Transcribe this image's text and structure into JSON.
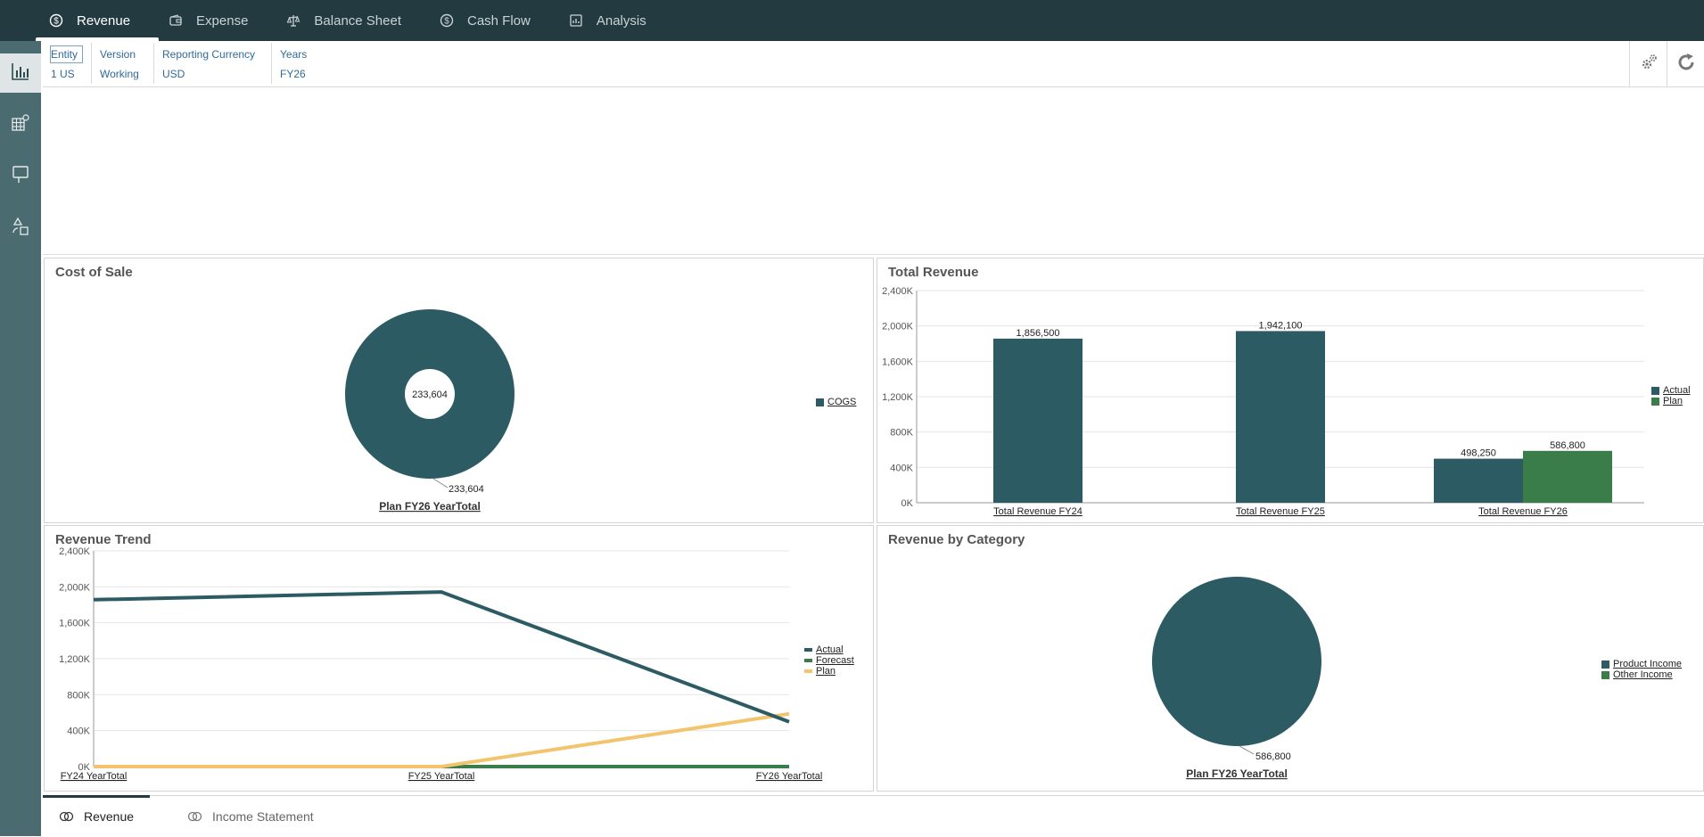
{
  "topnav": {
    "tabs": [
      {
        "label": "Revenue",
        "icon": "dollar-circle-icon",
        "active": true
      },
      {
        "label": "Expense",
        "icon": "wallet-icon",
        "active": false
      },
      {
        "label": "Balance Sheet",
        "icon": "scale-icon",
        "active": false
      },
      {
        "label": "Cash Flow",
        "icon": "dollar-circle-icon",
        "active": false
      },
      {
        "label": "Analysis",
        "icon": "report-icon",
        "active": false
      }
    ]
  },
  "leftrail": {
    "items": [
      {
        "icon": "bar-chart-icon",
        "active": true
      },
      {
        "icon": "grid-settings-icon",
        "active": false
      },
      {
        "icon": "dashboard-board-icon",
        "active": false
      },
      {
        "icon": "shapes-icon",
        "active": false
      }
    ]
  },
  "pov": {
    "columns": [
      {
        "header": "Entity",
        "value": "1 US"
      },
      {
        "header": "Version",
        "value": "Working"
      },
      {
        "header": "Reporting Currency",
        "value": "USD"
      },
      {
        "header": "Years",
        "value": "FY26"
      }
    ],
    "tools": [
      "settings-gears-icon",
      "refresh-icon"
    ]
  },
  "colors": {
    "teal": "#2d5b63",
    "green": "#3a7d4a",
    "gold": "#f2c46d",
    "nav_bg": "#223a40"
  },
  "panels": {
    "cost_of_sale": {
      "title": "Cost of Sale",
      "center_label": "233,604",
      "slice_label": "233,604",
      "axis_label": "Plan FY26 YearTotal",
      "legend": [
        "COGS"
      ]
    },
    "total_revenue": {
      "title": "Total Revenue",
      "legend": [
        "Actual",
        "Plan"
      ]
    },
    "revenue_trend": {
      "title": "Revenue Trend",
      "legend": [
        "Actual",
        "Forecast",
        "Plan"
      ]
    },
    "revenue_by_category": {
      "title": "Revenue by Category",
      "slice_label": "586,800",
      "axis_label": "Plan FY26 YearTotal",
      "legend": [
        "Product Income",
        "Other Income"
      ]
    }
  },
  "chart_data": [
    {
      "type": "pie",
      "title": "Cost of Sale",
      "donut": true,
      "categories": [
        "COGS"
      ],
      "values": [
        233604
      ],
      "total": "233,604",
      "xlabel": "Plan FY26 YearTotal"
    },
    {
      "type": "bar",
      "title": "Total Revenue",
      "categories": [
        "Total Revenue FY24",
        "Total Revenue FY25",
        "Total Revenue FY26"
      ],
      "series": [
        {
          "name": "Actual",
          "values": [
            1856500,
            1942100,
            498250
          ],
          "labels": [
            "1,856,500",
            "1,942,100",
            "498,250"
          ]
        },
        {
          "name": "Plan",
          "values": [
            null,
            null,
            586800
          ],
          "labels": [
            "",
            "",
            "586,800"
          ]
        }
      ],
      "ylim": [
        0,
        2400000
      ],
      "yticks": [
        "0K",
        "400K",
        "800K",
        "1,200K",
        "1,600K",
        "2,000K",
        "2,400K"
      ],
      "grid": true,
      "legend_position": "right"
    },
    {
      "type": "line",
      "title": "Revenue Trend",
      "categories": [
        "FY24 YearTotal",
        "FY25 YearTotal",
        "FY26 YearTotal"
      ],
      "series": [
        {
          "name": "Actual",
          "values": [
            1856500,
            1942100,
            498250
          ]
        },
        {
          "name": "Forecast",
          "values": [
            0,
            0,
            0
          ]
        },
        {
          "name": "Plan",
          "values": [
            0,
            0,
            586800
          ]
        }
      ],
      "ylim": [
        0,
        2400000
      ],
      "yticks": [
        "0K",
        "400K",
        "800K",
        "1,200K",
        "1,600K",
        "2,000K",
        "2,400K"
      ],
      "grid": true,
      "legend_position": "right"
    },
    {
      "type": "pie",
      "title": "Revenue by Category",
      "categories": [
        "Product Income",
        "Other Income"
      ],
      "values": [
        586800,
        0
      ],
      "xlabel": "Plan FY26 YearTotal"
    }
  ],
  "bottombar": {
    "tabs": [
      {
        "label": "Revenue",
        "icon": "cards-icon",
        "active": true
      },
      {
        "label": "Income Statement",
        "icon": "cards-icon",
        "active": false
      }
    ]
  }
}
